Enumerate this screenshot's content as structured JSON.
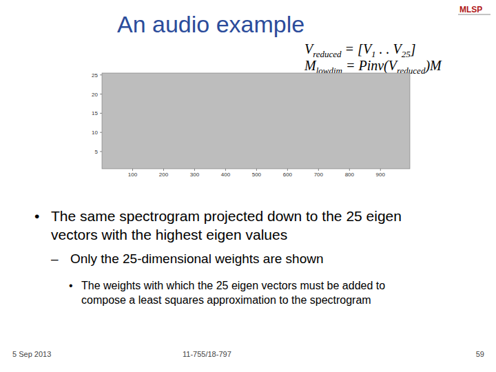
{
  "header": {
    "title": "An audio example",
    "logo": "MLSP"
  },
  "equations": [
    [
      {
        "text": "V",
        "sub": "reduced"
      },
      {
        "text": " = [V",
        "sub": "1"
      },
      {
        "text": "   .   .   V",
        "sub": "25"
      },
      {
        "text": "]",
        "sub": ""
      }
    ],
    [
      {
        "text": "M",
        "sub": "lowdim"
      },
      {
        "text": " = Pinv(V",
        "sub": "reduced"
      },
      {
        "text": ")M",
        "sub": ""
      }
    ]
  ],
  "chart_data": {
    "type": "heatmap",
    "xlim": [
      1,
      995
    ],
    "ylim": [
      0.5,
      25.5
    ],
    "xticks": [
      100,
      200,
      300,
      400,
      500,
      600,
      700,
      800,
      900
    ],
    "yticks": [
      5,
      10,
      15,
      20,
      25
    ]
  },
  "bullets": [
    {
      "bullet": "•",
      "level": 1,
      "lines": [
        "The same spectrogram projected down to the 25 eigen",
        "vectors with the highest eigen values"
      ]
    },
    {
      "bullet": "–",
      "level": 2,
      "lines": [
        "Only the 25-dimensional weights are shown"
      ]
    },
    {
      "bullet": "•",
      "level": 3,
      "lines": [
        "The weights with which the 25 eigen vectors must be added to",
        "compose a least squares approximation to the spectrogram"
      ]
    }
  ],
  "footer": {
    "date": "5 Sep 2013",
    "course": "11-755/18-797",
    "page": "59"
  }
}
